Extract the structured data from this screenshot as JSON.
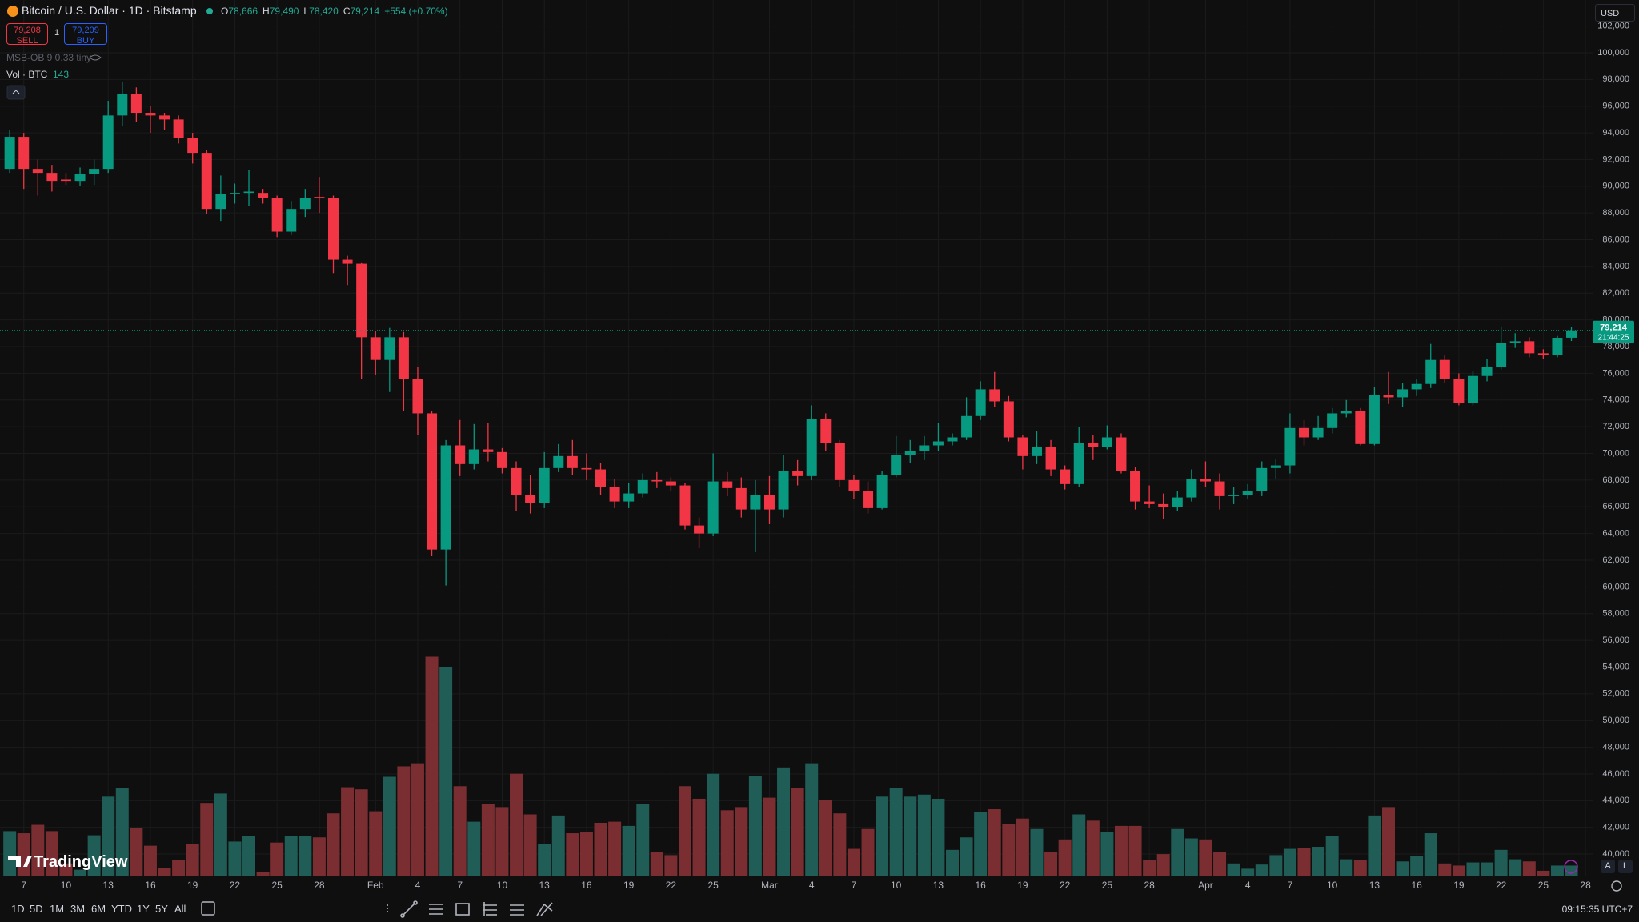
{
  "chart_data": {
    "type": "candlestick",
    "categories": [
      null,
      "7",
      null,
      null,
      "10",
      null,
      null,
      "13",
      null,
      null,
      "16",
      null,
      null,
      "19",
      null,
      null,
      "22",
      null,
      null,
      "25",
      null,
      null,
      "28",
      null,
      null,
      null,
      "Feb",
      null,
      null,
      "4",
      null,
      null,
      "7",
      null,
      null,
      "10",
      null,
      null,
      "13",
      null,
      null,
      "16",
      null,
      null,
      "19",
      null,
      null,
      "22",
      null,
      null,
      "25",
      null,
      null,
      null,
      "Mar",
      null,
      null,
      "4",
      null,
      null,
      "7",
      null,
      null,
      "10",
      null,
      null,
      "13",
      null,
      null,
      "16",
      null,
      null,
      "19",
      null,
      null,
      "22",
      null,
      null,
      "25",
      null,
      null,
      "28",
      null,
      null,
      null,
      "Apr",
      null,
      null,
      "4",
      null,
      null,
      "7",
      null,
      null,
      "10",
      null,
      null,
      "13",
      null,
      null,
      "16",
      null,
      null,
      "19",
      null,
      null,
      "22",
      null,
      null,
      "25",
      null,
      null,
      "28"
    ],
    "open": [
      91300,
      93700,
      91300,
      91000,
      90500,
      90400,
      90900,
      91300,
      95300,
      96900,
      95500,
      95300,
      95000,
      93600,
      92500,
      88300,
      89400,
      89500,
      89500,
      89100,
      86600,
      88300,
      89200,
      89100,
      84500,
      84200,
      78700,
      77000,
      78700,
      75600,
      73000,
      62800,
      70600,
      69200,
      70300,
      70100,
      68900,
      66900,
      66300,
      68900,
      69800,
      68900,
      68800,
      67500,
      66400,
      67000,
      68000,
      67900,
      67600,
      64600,
      64000,
      67900,
      67400,
      65800,
      66900,
      65800,
      68700,
      68300,
      72600,
      70800,
      68000,
      67200,
      65900,
      68400,
      69900,
      70200,
      70600,
      70900,
      71200,
      72800,
      74800,
      73900,
      71200,
      69800,
      70500,
      68800,
      67700,
      70800,
      70500,
      71200,
      68700,
      66400,
      66200,
      66000,
      66700,
      68100,
      67900,
      66800,
      66900,
      67200,
      68900,
      69100,
      71900,
      71200,
      71900,
      73000,
      73200,
      70700,
      74400,
      74200,
      74800,
      75200,
      77000,
      75600,
      73800,
      75800,
      76500,
      78300,
      78400,
      77500,
      77400,
      78666,
      null
    ],
    "high": [
      94200,
      94000,
      92000,
      91600,
      91000,
      91400,
      92000,
      96400,
      97800,
      97400,
      96000,
      95500,
      95300,
      94000,
      92700,
      90800,
      90200,
      91200,
      89800,
      89300,
      88900,
      89800,
      90700,
      89300,
      84800,
      84300,
      79200,
      79400,
      79100,
      76500,
      73200,
      71000,
      72500,
      72200,
      72300,
      70400,
      69400,
      68400,
      70100,
      70700,
      71000,
      70000,
      69300,
      68100,
      67800,
      68500,
      68600,
      68200,
      67800,
      65200,
      70000,
      68600,
      68200,
      68000,
      68300,
      69900,
      69500,
      73600,
      73000,
      71000,
      68400,
      67900,
      68700,
      71300,
      71000,
      71300,
      72300,
      71500,
      74200,
      75400,
      76100,
      74300,
      71400,
      71700,
      71000,
      69100,
      72000,
      71400,
      72100,
      71500,
      69000,
      67600,
      67000,
      67200,
      68800,
      69400,
      68500,
      67500,
      67700,
      69400,
      69600,
      73000,
      72500,
      72800,
      73400,
      74000,
      73400,
      75000,
      76100,
      75300,
      75600,
      78200,
      77400,
      76000,
      76200,
      77100,
      79500,
      79000,
      78700,
      77800,
      78800,
      79490,
      null
    ],
    "low": [
      91000,
      89800,
      89300,
      89600,
      90100,
      90000,
      90100,
      91000,
      94500,
      94800,
      94000,
      94200,
      93200,
      91700,
      87900,
      87400,
      88700,
      88500,
      88700,
      86200,
      86400,
      87700,
      88000,
      83500,
      82600,
      75600,
      75900,
      74600,
      73200,
      71400,
      62300,
      60100,
      68300,
      68800,
      69400,
      68500,
      65700,
      65500,
      65900,
      68600,
      68400,
      68000,
      66900,
      65900,
      65900,
      66700,
      67400,
      67200,
      64300,
      62900,
      63800,
      66800,
      65200,
      62600,
      64700,
      65200,
      67600,
      68000,
      70200,
      67500,
      66600,
      65500,
      65800,
      68200,
      69300,
      69500,
      70200,
      70600,
      71000,
      72500,
      73500,
      70900,
      68800,
      69200,
      68300,
      67300,
      67500,
      69500,
      70300,
      68500,
      65800,
      65900,
      65100,
      65700,
      66400,
      67500,
      65800,
      66200,
      66600,
      66800,
      68100,
      68500,
      70600,
      71000,
      71500,
      72700,
      70600,
      70600,
      73700,
      73500,
      74300,
      74900,
      75300,
      73600,
      73600,
      75400,
      76300,
      77900,
      77200,
      77100,
      77200,
      78420,
      null
    ],
    "close": [
      93700,
      91300,
      91000,
      90400,
      90400,
      90900,
      91300,
      95300,
      96900,
      95500,
      95300,
      95000,
      93600,
      92500,
      88300,
      89400,
      89500,
      89600,
      89100,
      86600,
      88300,
      89100,
      89100,
      84500,
      84200,
      78700,
      77000,
      78700,
      75600,
      73000,
      62800,
      70600,
      69200,
      70300,
      70100,
      68900,
      66900,
      66300,
      68900,
      69800,
      68900,
      68800,
      67500,
      66400,
      67000,
      68000,
      67900,
      67600,
      64600,
      64000,
      67900,
      67400,
      65800,
      66900,
      65800,
      68700,
      68300,
      72600,
      70800,
      68000,
      67200,
      65900,
      68400,
      69900,
      70200,
      70600,
      70900,
      71200,
      72800,
      74800,
      73900,
      71200,
      69800,
      70500,
      68800,
      67700,
      70800,
      70500,
      71200,
      68700,
      66400,
      66200,
      66000,
      66700,
      68100,
      67900,
      66800,
      66900,
      67200,
      68900,
      69100,
      71900,
      71200,
      71900,
      73000,
      73200,
      70700,
      74400,
      74200,
      74800,
      75200,
      77000,
      75600,
      73800,
      75800,
      76500,
      78300,
      78400,
      77500,
      77400,
      78660,
      79214,
      null
    ],
    "volume": [
      615,
      586,
      701,
      615,
      172,
      86,
      558,
      1087,
      1201,
      658,
      415,
      114,
      215,
      443,
      1001,
      1130,
      472,
      543,
      57,
      458,
      543,
      543,
      529,
      858,
      1216,
      1187,
      887,
      1359,
      1502,
      1544,
      3003,
      2860,
      1230,
      744,
      987,
      944,
      1401,
      844,
      443,
      829,
      586,
      601,
      729,
      744,
      686,
      987,
      329,
      286,
      1230,
      1058,
      1401,
      901,
      944,
      1373,
      1073,
      1487,
      1201,
      1544,
      1044,
      858,
      372,
      644,
      1087,
      1201,
      1087,
      1115,
      1058,
      358,
      529,
      872,
      915,
      715,
      787,
      644,
      329,
      501,
      844,
      758,
      601,
      686,
      686,
      215,
      300,
      644,
      515,
      501,
      329,
      172,
      100,
      157,
      286,
      372,
      386,
      400,
      543,
      229,
      215,
      829,
      944,
      200,
      272,
      586,
      172,
      143,
      186,
      186,
      358,
      229,
      200,
      72,
      143,
      143,
      null
    ],
    "up_color": "#089981",
    "down_color": "#f23645",
    "volume_up_color": "#1f5d56",
    "volume_down_color": "#7a2e31",
    "ylim": [
      38355,
      103953
    ],
    "yticks": [
      {
        "value": 40000,
        "label": "40,000"
      },
      {
        "value": 42000,
        "label": "42,000"
      },
      {
        "value": 44000,
        "label": "44,000"
      },
      {
        "value": 46000,
        "label": "46,000"
      },
      {
        "value": 48000,
        "label": "48,000"
      },
      {
        "value": 50000,
        "label": "50,000"
      },
      {
        "value": 52000,
        "label": "52,000"
      },
      {
        "value": 54000,
        "label": "54,000"
      },
      {
        "value": 56000,
        "label": "56,000"
      },
      {
        "value": 58000,
        "label": "58,000"
      },
      {
        "value": 60000,
        "label": "60,000"
      },
      {
        "value": 62000,
        "label": "62,000"
      },
      {
        "value": 64000,
        "label": "64,000"
      },
      {
        "value": 66000,
        "label": "66,000"
      },
      {
        "value": 68000,
        "label": "68,000"
      },
      {
        "value": 70000,
        "label": "70,000"
      },
      {
        "value": 72000,
        "label": "72,000"
      },
      {
        "value": 74000,
        "label": "74,000"
      },
      {
        "value": 76000,
        "label": "76,000"
      },
      {
        "value": 78000,
        "label": "78,000"
      },
      {
        "value": 80000,
        "label": "80,000"
      },
      {
        "value": 82000,
        "label": "82,000"
      },
      {
        "value": 84000,
        "label": "84,000"
      },
      {
        "value": 86000,
        "label": "86,000"
      },
      {
        "value": 88000,
        "label": "88,000"
      },
      {
        "value": 90000,
        "label": "90,000"
      },
      {
        "value": 92000,
        "label": "92,000"
      },
      {
        "value": 94000,
        "label": "94,000"
      },
      {
        "value": 96000,
        "label": "96,000"
      },
      {
        "value": 98000,
        "label": "98,000"
      },
      {
        "value": 100000,
        "label": "100,000"
      },
      {
        "value": 102000,
        "label": "102,000"
      }
    ],
    "grid": true,
    "last_price_label": "79,214",
    "countdown": "21:44:25"
  },
  "ui": {
    "symbol": "Bitcoin / U.S. Dollar · 1D · Bitstamp",
    "ohlc": [
      {
        "key": "O",
        "value": "78,666"
      },
      {
        "key": "H",
        "value": "79,490"
      },
      {
        "key": "L",
        "value": "78,420"
      },
      {
        "key": "C",
        "value": "79,214"
      }
    ],
    "change": "+554 (+0.70%)",
    "sell_price": "79,208",
    "sell": "SELL",
    "spread": "1",
    "buy_price": "79,209",
    "buy": "BUY",
    "indicator": "MSB-OB 9 0.33 tiny",
    "volume_name": "Vol · BTC",
    "volume_value": "143",
    "currency": "USD",
    "logo": "TradingView",
    "scale_buttons": [
      "A",
      "L"
    ],
    "ranges": [
      "1D",
      "5D",
      "1M",
      "3M",
      "6M",
      "YTD",
      "1Y",
      "5Y",
      "All"
    ],
    "clock": "09:15:35 UTC+7"
  }
}
